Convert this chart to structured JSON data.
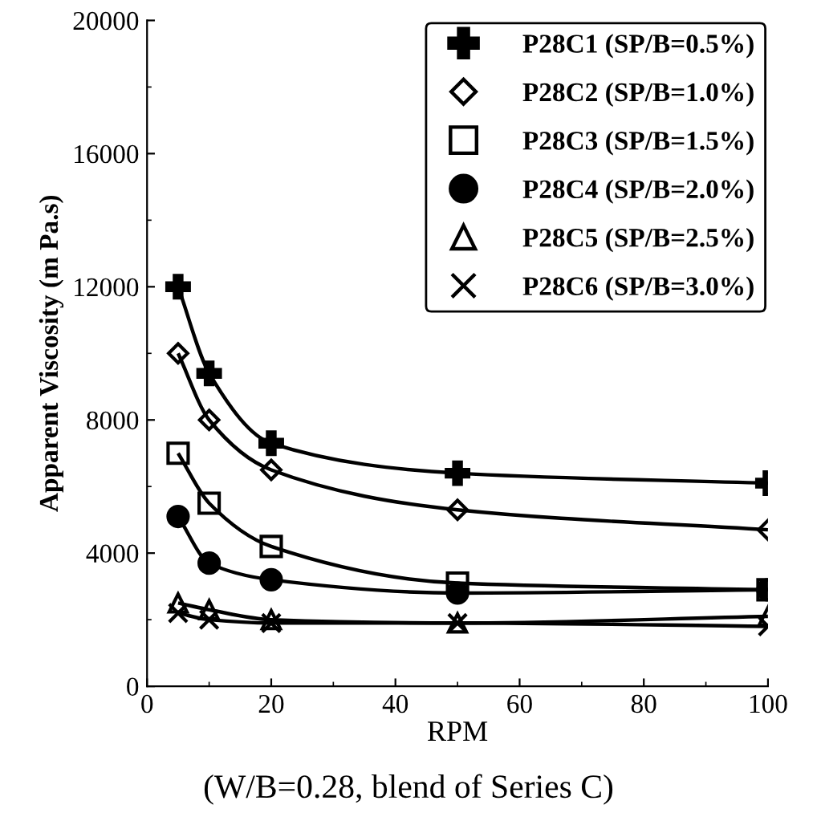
{
  "chart_data": {
    "type": "line",
    "xlabel": "RPM",
    "ylabel": "Apparent Viscosity (m Pa.s)",
    "x": [
      5,
      10,
      20,
      50,
      100
    ],
    "series": [
      {
        "name": "P28C1 (SP/B=0.5%)",
        "color": "#000000",
        "marker": "plus",
        "values": [
          12000,
          9400,
          7300,
          6400,
          6100
        ]
      },
      {
        "name": "P28C2 (SP/B=1.0%)",
        "color": "#000000",
        "marker": "diamond",
        "values": [
          10000,
          8000,
          6500,
          5300,
          4700
        ]
      },
      {
        "name": "P28C3 (SP/B=1.5%)",
        "color": "#000000",
        "marker": "square",
        "values": [
          7000,
          5500,
          4200,
          3100,
          2900
        ]
      },
      {
        "name": "P28C4 (SP/B=2.0%)",
        "color": "#000000",
        "marker": "filled circle",
        "values": [
          5100,
          3700,
          3200,
          2800,
          2900
        ]
      },
      {
        "name": "P28C5 (SP/B=2.5%)",
        "color": "#000000",
        "marker": "triangle",
        "values": [
          2500,
          2300,
          2000,
          1900,
          2100
        ]
      },
      {
        "name": "P28C6 (SP/B=3.0%)",
        "color": "#000000",
        "marker": "cross",
        "values": [
          2200,
          2000,
          1900,
          1900,
          1800
        ]
      }
    ],
    "xlim": [
      0,
      100
    ],
    "xticks": [
      0,
      20,
      40,
      60,
      80,
      100
    ],
    "ylim": [
      0,
      20000
    ],
    "yticks": [
      0,
      4000,
      8000,
      12000,
      16000,
      20000
    ],
    "legend": "top right",
    "grid": false,
    "line_style": "solid",
    "annotations": [
      "(W/B=0.28, blend of Series C)"
    ]
  }
}
